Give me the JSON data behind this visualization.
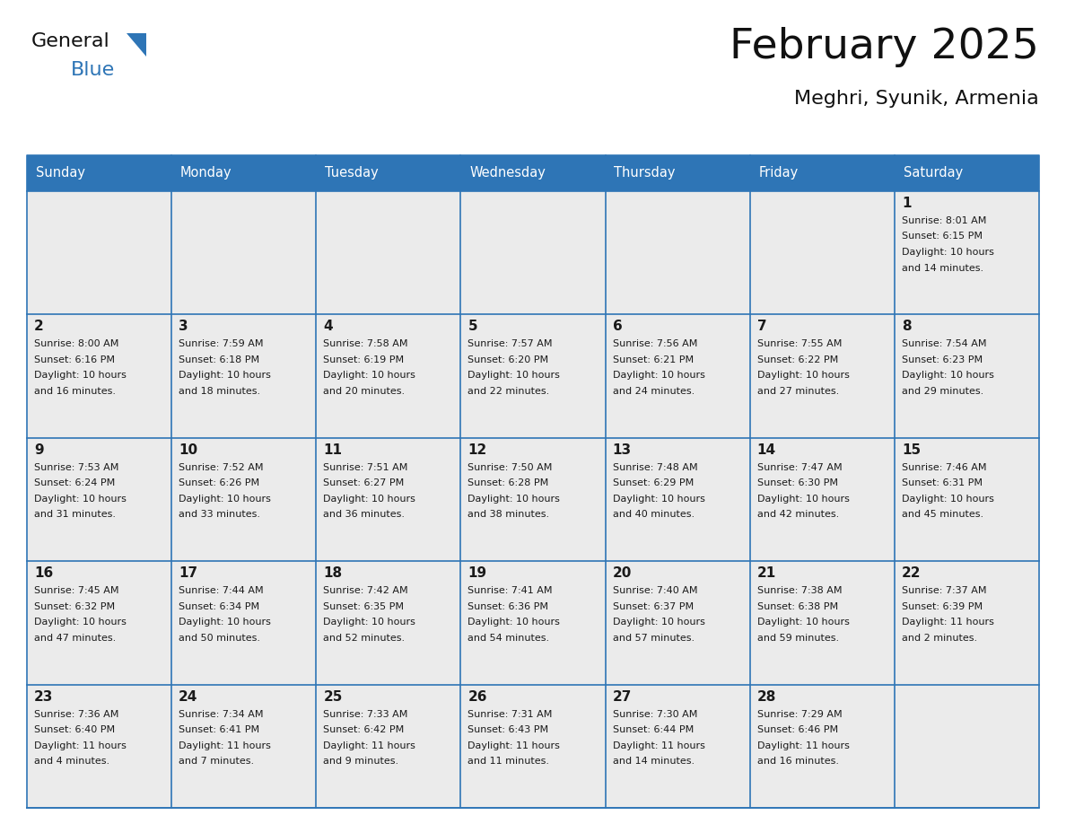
{
  "title": "February 2025",
  "subtitle": "Meghri, Syunik, Armenia",
  "header_color": "#2E75B6",
  "header_text_color": "#FFFFFF",
  "cell_bg_color": "#EBEBEB",
  "border_color": "#2E75B6",
  "text_color": "#1a1a1a",
  "day_num_color": "#1a1a1a",
  "days_of_week": [
    "Sunday",
    "Monday",
    "Tuesday",
    "Wednesday",
    "Thursday",
    "Friday",
    "Saturday"
  ],
  "weeks": [
    [
      {
        "day": "",
        "info": ""
      },
      {
        "day": "",
        "info": ""
      },
      {
        "day": "",
        "info": ""
      },
      {
        "day": "",
        "info": ""
      },
      {
        "day": "",
        "info": ""
      },
      {
        "day": "",
        "info": ""
      },
      {
        "day": "1",
        "info": "Sunrise: 8:01 AM\nSunset: 6:15 PM\nDaylight: 10 hours\nand 14 minutes."
      }
    ],
    [
      {
        "day": "2",
        "info": "Sunrise: 8:00 AM\nSunset: 6:16 PM\nDaylight: 10 hours\nand 16 minutes."
      },
      {
        "day": "3",
        "info": "Sunrise: 7:59 AM\nSunset: 6:18 PM\nDaylight: 10 hours\nand 18 minutes."
      },
      {
        "day": "4",
        "info": "Sunrise: 7:58 AM\nSunset: 6:19 PM\nDaylight: 10 hours\nand 20 minutes."
      },
      {
        "day": "5",
        "info": "Sunrise: 7:57 AM\nSunset: 6:20 PM\nDaylight: 10 hours\nand 22 minutes."
      },
      {
        "day": "6",
        "info": "Sunrise: 7:56 AM\nSunset: 6:21 PM\nDaylight: 10 hours\nand 24 minutes."
      },
      {
        "day": "7",
        "info": "Sunrise: 7:55 AM\nSunset: 6:22 PM\nDaylight: 10 hours\nand 27 minutes."
      },
      {
        "day": "8",
        "info": "Sunrise: 7:54 AM\nSunset: 6:23 PM\nDaylight: 10 hours\nand 29 minutes."
      }
    ],
    [
      {
        "day": "9",
        "info": "Sunrise: 7:53 AM\nSunset: 6:24 PM\nDaylight: 10 hours\nand 31 minutes."
      },
      {
        "day": "10",
        "info": "Sunrise: 7:52 AM\nSunset: 6:26 PM\nDaylight: 10 hours\nand 33 minutes."
      },
      {
        "day": "11",
        "info": "Sunrise: 7:51 AM\nSunset: 6:27 PM\nDaylight: 10 hours\nand 36 minutes."
      },
      {
        "day": "12",
        "info": "Sunrise: 7:50 AM\nSunset: 6:28 PM\nDaylight: 10 hours\nand 38 minutes."
      },
      {
        "day": "13",
        "info": "Sunrise: 7:48 AM\nSunset: 6:29 PM\nDaylight: 10 hours\nand 40 minutes."
      },
      {
        "day": "14",
        "info": "Sunrise: 7:47 AM\nSunset: 6:30 PM\nDaylight: 10 hours\nand 42 minutes."
      },
      {
        "day": "15",
        "info": "Sunrise: 7:46 AM\nSunset: 6:31 PM\nDaylight: 10 hours\nand 45 minutes."
      }
    ],
    [
      {
        "day": "16",
        "info": "Sunrise: 7:45 AM\nSunset: 6:32 PM\nDaylight: 10 hours\nand 47 minutes."
      },
      {
        "day": "17",
        "info": "Sunrise: 7:44 AM\nSunset: 6:34 PM\nDaylight: 10 hours\nand 50 minutes."
      },
      {
        "day": "18",
        "info": "Sunrise: 7:42 AM\nSunset: 6:35 PM\nDaylight: 10 hours\nand 52 minutes."
      },
      {
        "day": "19",
        "info": "Sunrise: 7:41 AM\nSunset: 6:36 PM\nDaylight: 10 hours\nand 54 minutes."
      },
      {
        "day": "20",
        "info": "Sunrise: 7:40 AM\nSunset: 6:37 PM\nDaylight: 10 hours\nand 57 minutes."
      },
      {
        "day": "21",
        "info": "Sunrise: 7:38 AM\nSunset: 6:38 PM\nDaylight: 10 hours\nand 59 minutes."
      },
      {
        "day": "22",
        "info": "Sunrise: 7:37 AM\nSunset: 6:39 PM\nDaylight: 11 hours\nand 2 minutes."
      }
    ],
    [
      {
        "day": "23",
        "info": "Sunrise: 7:36 AM\nSunset: 6:40 PM\nDaylight: 11 hours\nand 4 minutes."
      },
      {
        "day": "24",
        "info": "Sunrise: 7:34 AM\nSunset: 6:41 PM\nDaylight: 11 hours\nand 7 minutes."
      },
      {
        "day": "25",
        "info": "Sunrise: 7:33 AM\nSunset: 6:42 PM\nDaylight: 11 hours\nand 9 minutes."
      },
      {
        "day": "26",
        "info": "Sunrise: 7:31 AM\nSunset: 6:43 PM\nDaylight: 11 hours\nand 11 minutes."
      },
      {
        "day": "27",
        "info": "Sunrise: 7:30 AM\nSunset: 6:44 PM\nDaylight: 11 hours\nand 14 minutes."
      },
      {
        "day": "28",
        "info": "Sunrise: 7:29 AM\nSunset: 6:46 PM\nDaylight: 11 hours\nand 16 minutes."
      },
      {
        "day": "",
        "info": ""
      }
    ]
  ],
  "logo_text_general": "General",
  "logo_text_blue": "Blue",
  "logo_triangle_color": "#2E75B6"
}
